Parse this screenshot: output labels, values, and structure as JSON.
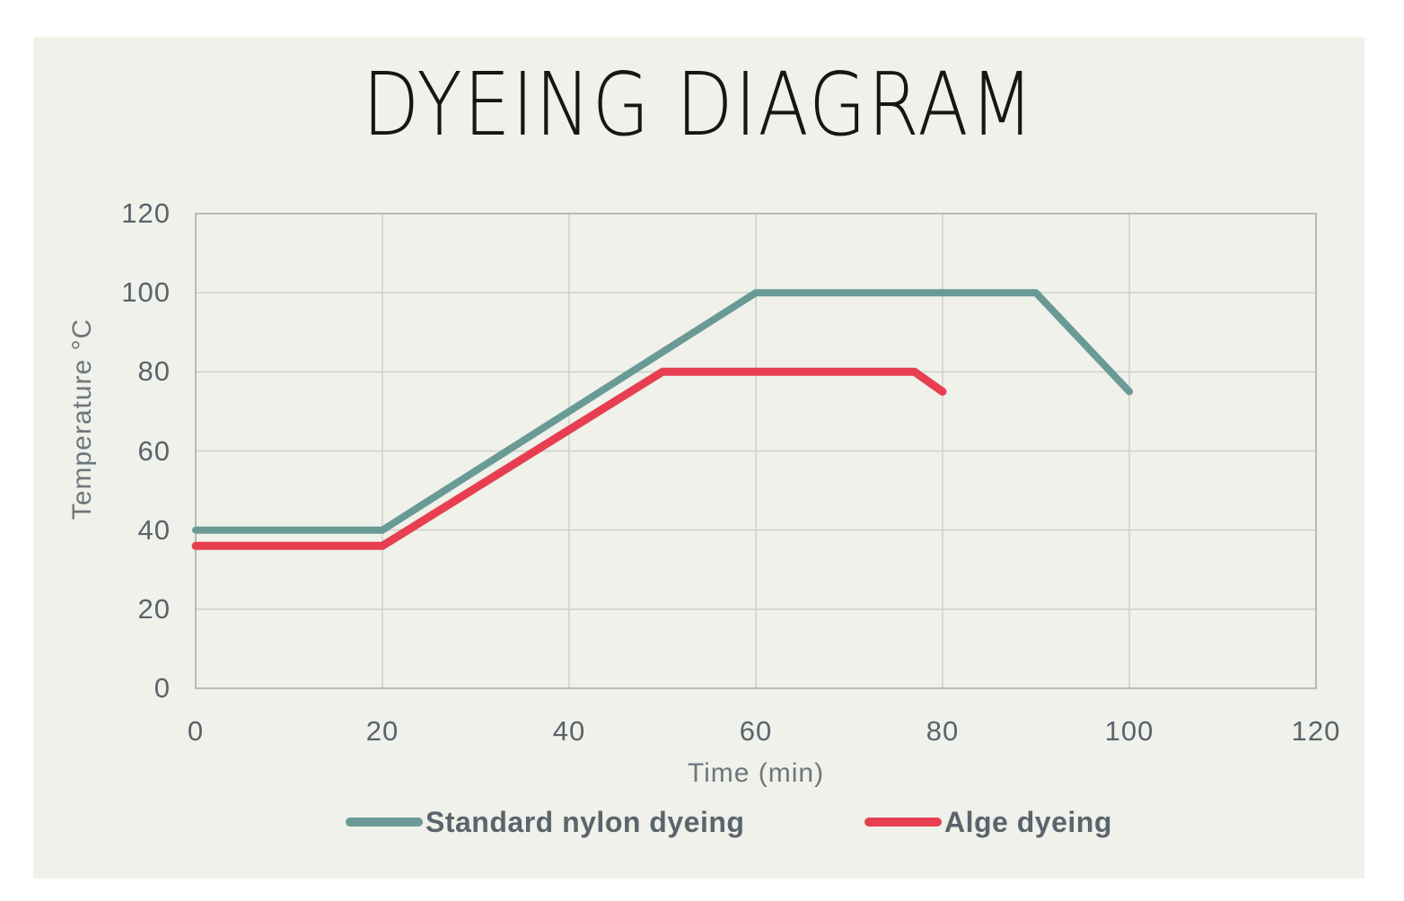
{
  "title": "DYEING DIAGRAM",
  "colors": {
    "background": "#ffffff",
    "panel_background": "#eff1ea",
    "gridline": "#cdd0c9",
    "plot_border": "#a4aaa3",
    "tick_text": "#59636b",
    "axis_title_text": "#6d767d",
    "legend_text": "#5b646c",
    "title_text": "#161616",
    "series_teal": "#699a95",
    "series_red": "#e73e51"
  },
  "chart_data": {
    "type": "line",
    "title": "DYEING DIAGRAM",
    "xlabel": "Time (min)",
    "ylabel": "Temperature °C",
    "xlim": [
      0,
      120
    ],
    "ylim": [
      0,
      120
    ],
    "xticks": [
      0,
      20,
      40,
      60,
      80,
      100,
      120
    ],
    "yticks": [
      0,
      20,
      40,
      60,
      80,
      100,
      120
    ],
    "grid": true,
    "legend_position": "bottom",
    "series": [
      {
        "name": "Standard nylon dyeing",
        "color": "#699a95",
        "stroke_width": 8,
        "points": [
          [
            0,
            40
          ],
          [
            20,
            40
          ],
          [
            60,
            100
          ],
          [
            90,
            100
          ],
          [
            100,
            75
          ]
        ]
      },
      {
        "name": "Alge dyeing",
        "color": "#e73e51",
        "stroke_width": 9,
        "points": [
          [
            0,
            36
          ],
          [
            20,
            36
          ],
          [
            50,
            80
          ],
          [
            77,
            80
          ],
          [
            80,
            75
          ]
        ]
      }
    ]
  }
}
